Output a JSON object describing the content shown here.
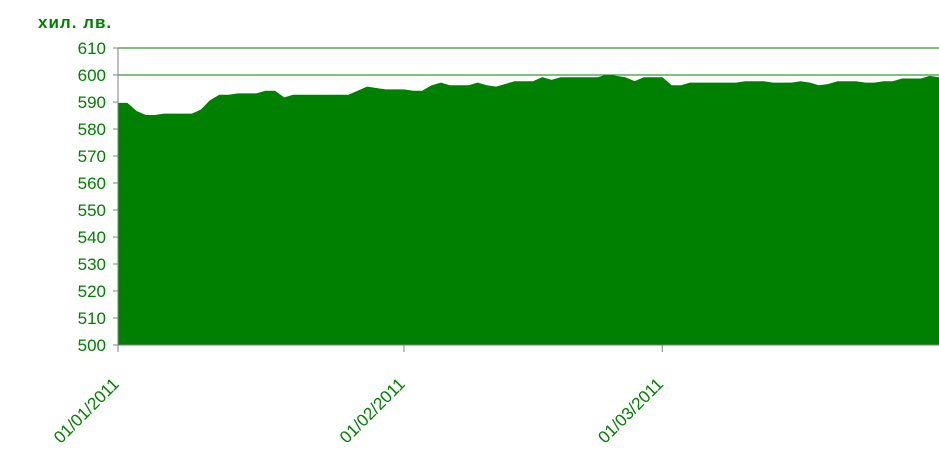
{
  "chart_data": {
    "type": "area",
    "title": "",
    "ylabel": "хил. лв.",
    "xlabel": "",
    "ylim": [
      500,
      610
    ],
    "yticks": [
      500,
      510,
      520,
      530,
      540,
      550,
      560,
      570,
      580,
      590,
      600,
      610
    ],
    "xticks": [
      "01/01/2011",
      "01/02/2011",
      "01/03/2011"
    ],
    "grid": "horizontal at 600 and 610",
    "legend": "none",
    "colors": {
      "area": "#008000",
      "text": "#008000",
      "axis": "#808080",
      "grid": "#008000"
    },
    "x": [
      "01/01/2011",
      "02/01/2011",
      "03/01/2011",
      "04/01/2011",
      "05/01/2011",
      "06/01/2011",
      "07/01/2011",
      "08/01/2011",
      "09/01/2011",
      "10/01/2011",
      "11/01/2011",
      "12/01/2011",
      "13/01/2011",
      "14/01/2011",
      "15/01/2011",
      "16/01/2011",
      "17/01/2011",
      "18/01/2011",
      "19/01/2011",
      "20/01/2011",
      "21/01/2011",
      "22/01/2011",
      "23/01/2011",
      "24/01/2011",
      "25/01/2011",
      "26/01/2011",
      "27/01/2011",
      "28/01/2011",
      "29/01/2011",
      "30/01/2011",
      "31/01/2011",
      "01/02/2011",
      "02/02/2011",
      "03/02/2011",
      "04/02/2011",
      "05/02/2011",
      "06/02/2011",
      "07/02/2011",
      "08/02/2011",
      "09/02/2011",
      "10/02/2011",
      "11/02/2011",
      "12/02/2011",
      "13/02/2011",
      "14/02/2011",
      "15/02/2011",
      "16/02/2011",
      "17/02/2011",
      "18/02/2011",
      "19/02/2011",
      "20/02/2011",
      "21/02/2011",
      "22/02/2011",
      "23/02/2011",
      "24/02/2011",
      "25/02/2011",
      "26/02/2011",
      "27/02/2011",
      "28/02/2011",
      "01/03/2011",
      "02/03/2011",
      "03/03/2011",
      "04/03/2011",
      "05/03/2011",
      "06/03/2011",
      "07/03/2011",
      "08/03/2011",
      "09/03/2011",
      "10/03/2011",
      "11/03/2011",
      "12/03/2011",
      "13/03/2011",
      "14/03/2011",
      "15/03/2011",
      "16/03/2011",
      "17/03/2011",
      "18/03/2011",
      "19/03/2011",
      "20/03/2011",
      "21/03/2011",
      "22/03/2011",
      "23/03/2011",
      "24/03/2011",
      "25/03/2011",
      "26/03/2011",
      "27/03/2011",
      "28/03/2011",
      "29/03/2011",
      "30/03/2011",
      "31/03/2011"
    ],
    "series": [
      {
        "values": [
          589.5,
          589.5,
          586.5,
          585.0,
          585.0,
          585.5,
          585.5,
          585.5,
          585.5,
          587.0,
          590.5,
          592.5,
          592.5,
          593.0,
          593.0,
          593.0,
          594.0,
          594.0,
          591.5,
          592.5,
          592.5,
          592.5,
          592.5,
          592.5,
          592.5,
          592.5,
          594.0,
          595.5,
          595.0,
          594.5,
          594.5,
          594.5,
          594.0,
          594.0,
          596.0,
          597.0,
          596.0,
          596.0,
          596.0,
          597.0,
          596.0,
          595.5,
          596.5,
          597.5,
          597.5,
          597.5,
          599.0,
          598.0,
          599.0,
          599.0,
          599.0,
          599.0,
          599.0,
          600.0,
          599.5,
          599.0,
          597.5,
          599.0,
          599.0,
          599.0,
          596.0,
          596.0,
          597.0,
          597.0,
          597.0,
          597.0,
          597.0,
          597.0,
          597.5,
          597.5,
          597.5,
          597.0,
          597.0,
          597.0,
          597.5,
          597.0,
          596.0,
          596.5,
          597.5,
          597.5,
          597.5,
          597.0,
          597.0,
          597.5,
          597.5,
          598.5,
          598.5,
          598.5,
          599.5,
          599.0
        ]
      }
    ]
  }
}
